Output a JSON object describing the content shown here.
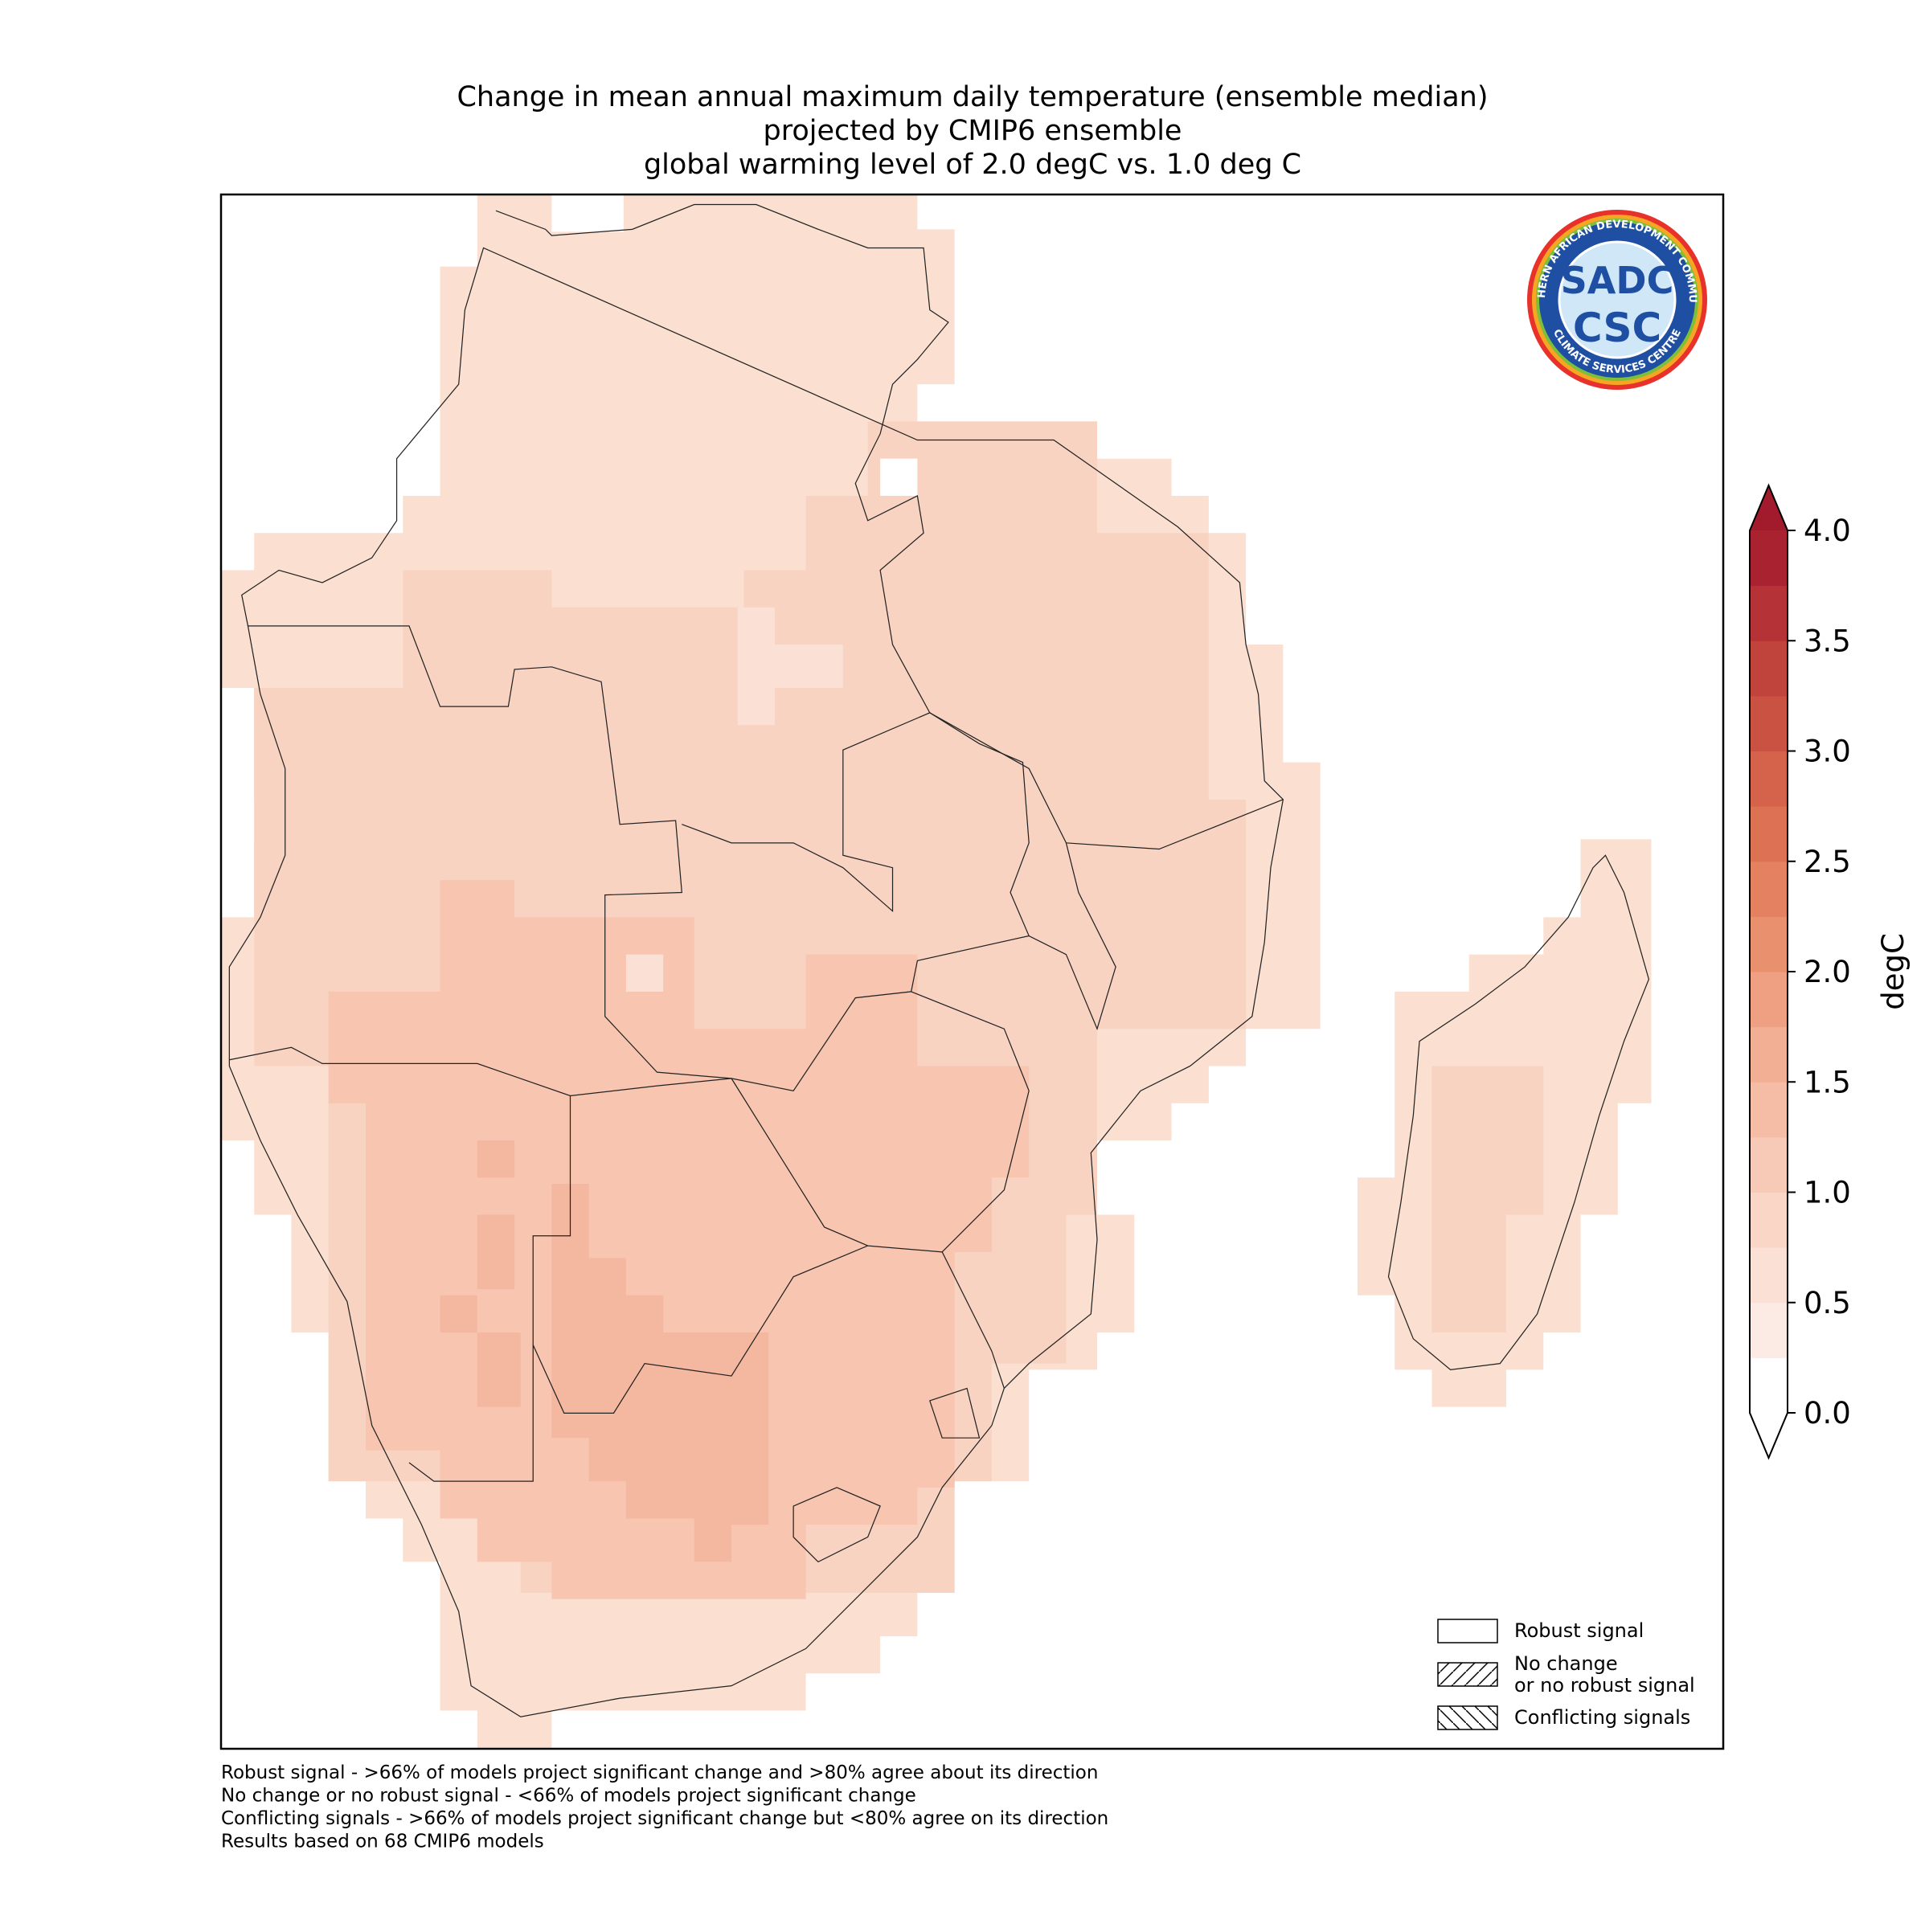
{
  "title": [
    "Change in mean annual maximum daily temperature (ensemble median)",
    "projected by CMIP6 ensemble",
    "global warming level of 2.0 degC vs. 1.0 deg C"
  ],
  "logo": {
    "ring_top": "SOUTHERN AFRICAN DEVELOPMENT COMMUNITY",
    "ring_bottom": "CLIMATE SERVICES CENTRE",
    "line1": "SADC",
    "line2": "CSC"
  },
  "colorbar": {
    "label": "degC",
    "clim": [
      0,
      4
    ],
    "ticks": [
      {
        "value": 0,
        "label": "0.0"
      },
      {
        "value": 0.5,
        "label": "0.5"
      },
      {
        "value": 1,
        "label": "1.0"
      },
      {
        "value": 1.5,
        "label": "1.5"
      },
      {
        "value": 2,
        "label": "2.0"
      },
      {
        "value": 2.5,
        "label": "2.5"
      },
      {
        "value": 3,
        "label": "3.0"
      },
      {
        "value": 3.5,
        "label": "3.5"
      },
      {
        "value": 4,
        "label": "4.0"
      }
    ],
    "colors": [
      "#ffffff",
      "#fbebe4",
      "#fbe1d5",
      "#f9d6c6",
      "#f7cab7",
      "#f5bda6",
      "#f2af94",
      "#efa082",
      "#e9906f",
      "#e48160",
      "#dd7154",
      "#d5624a",
      "#ca5243",
      "#c0433c",
      "#b53336",
      "#a8232f"
    ],
    "under": "#ffffff",
    "over": "#a21b2c"
  },
  "legend": [
    [
      "Robust signal"
    ],
    [
      "No change",
      "or no robust signal"
    ],
    [
      "Conflicting signals"
    ]
  ],
  "footnotes": [
    "Robust signal - >66% of models project significant change and >80% agree about its direction",
    "No change or no robust signal - <66% of models project significant change",
    "Conflicting signals - >66% of models project significant change but <80% agree on its direction",
    "Results based on 68 CMIP6 models"
  ]
}
